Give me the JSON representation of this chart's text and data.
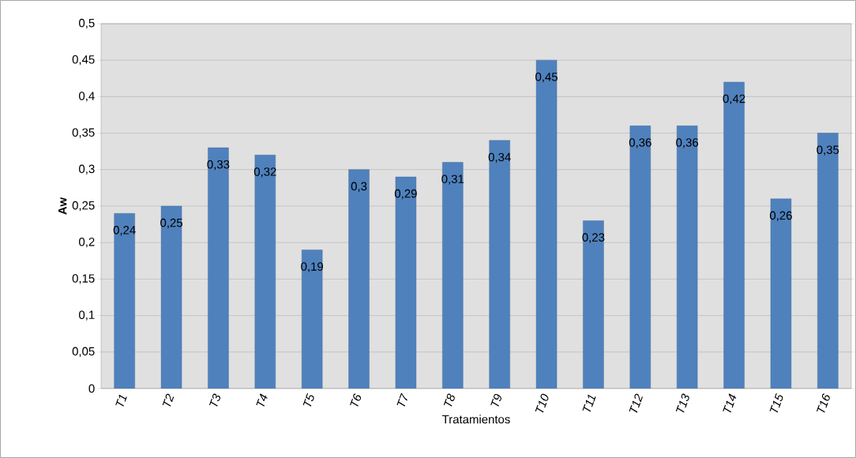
{
  "chart_data": {
    "type": "bar",
    "xlabel": "Tratamientos",
    "ylabel": "Aw",
    "categories": [
      "T1",
      "T2",
      "T3",
      "T4",
      "T5",
      "T6",
      "T7",
      "T8",
      "T9",
      "T10",
      "T11",
      "T12",
      "T13",
      "T14",
      "T15",
      "T16"
    ],
    "values": [
      0.24,
      0.25,
      0.33,
      0.32,
      0.19,
      0.3,
      0.29,
      0.31,
      0.34,
      0.45,
      0.23,
      0.36,
      0.36,
      0.42,
      0.26,
      0.35
    ],
    "value_labels": [
      "0,24",
      "0,25",
      "0,33",
      "0,32",
      "0,19",
      "0,3",
      "0,29",
      "0,31",
      "0,34",
      "0,45",
      "0,23",
      "0,36",
      "0,36",
      "0,42",
      "0,26",
      "0,35"
    ],
    "color": "#4f81bd",
    "ylim": [
      0,
      0.5
    ],
    "yticks": [
      {
        "value": 0,
        "label": "0"
      },
      {
        "value": 0.05,
        "label": "0,05"
      },
      {
        "value": 0.1,
        "label": "0,1"
      },
      {
        "value": 0.15,
        "label": "0,15"
      },
      {
        "value": 0.2,
        "label": "0,2"
      },
      {
        "value": 0.25,
        "label": "0,25"
      },
      {
        "value": 0.3,
        "label": "0,3"
      },
      {
        "value": 0.35,
        "label": "0,35"
      },
      {
        "value": 0.4,
        "label": "0,4"
      },
      {
        "value": 0.45,
        "label": "0,45"
      },
      {
        "value": 0.5,
        "label": "0,5"
      }
    ],
    "grid": "y"
  }
}
